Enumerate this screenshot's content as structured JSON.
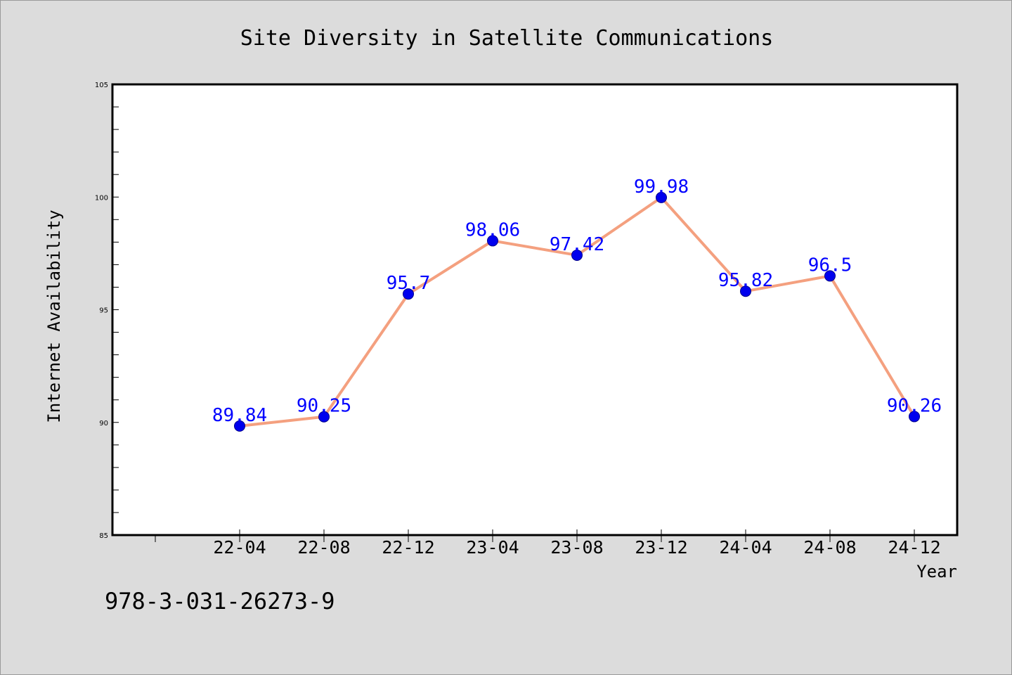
{
  "chart_data": {
    "type": "line",
    "title": "Site Diversity in Satellite Communications",
    "xlabel": "Year",
    "ylabel": "Internet Availability",
    "categories": [
      "22-04",
      "22-08",
      "22-12",
      "23-04",
      "23-08",
      "23-12",
      "24-04",
      "24-08",
      "24-12"
    ],
    "series": [
      {
        "values": [
          89.84,
          90.25,
          95.7,
          98.06,
          97.42,
          99.98,
          95.82,
          96.5,
          90.26
        ],
        "data_labels": [
          "89.84",
          "90.25",
          "95.7",
          "98.06",
          "97.42",
          "99.98",
          "95.82",
          "96.5",
          "90.26"
        ]
      }
    ],
    "ylim": [
      85,
      105
    ],
    "yticks": [
      85,
      90,
      95,
      100,
      105
    ],
    "ytick_labels": [
      "85",
      "90",
      "95",
      "100",
      "105"
    ],
    "grid": false,
    "colors": {
      "line": "#f4a07f",
      "marker": "#0000ee",
      "label": "#0000ff",
      "plot_background": "#ffffff",
      "figure_background": "#dcdcdc"
    }
  },
  "footer": {
    "isbn": "978-3-031-26273-9"
  }
}
